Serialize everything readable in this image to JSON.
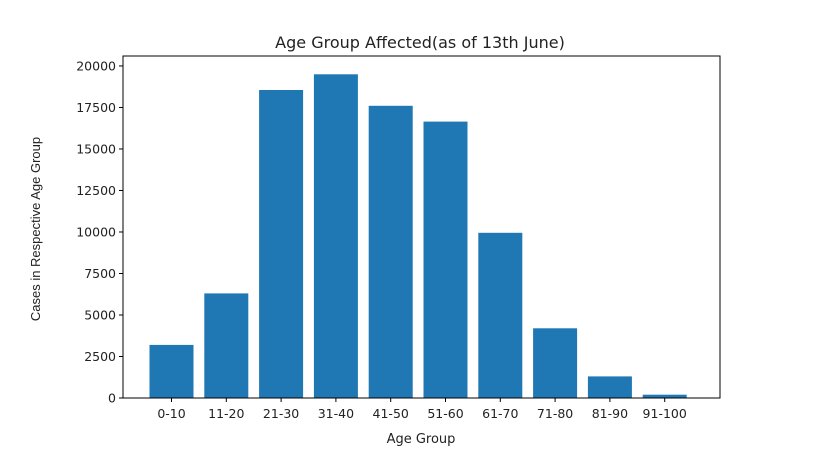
{
  "chart_data": {
    "type": "bar",
    "title": "Age Group Affected(as of 13th June)",
    "xlabel": "Age Group",
    "ylabel": "Cases in Respective Age Group",
    "categories": [
      "0-10",
      "11-20",
      "21-30",
      "31-40",
      "41-50",
      "51-60",
      "61-70",
      "71-80",
      "81-90",
      "91-100"
    ],
    "values": [
      3200,
      6300,
      18550,
      19500,
      17600,
      16650,
      9950,
      4200,
      1300,
      200
    ],
    "ylim": [
      0,
      20600
    ],
    "yticks": [
      0,
      2500,
      5000,
      7500,
      10000,
      12500,
      15000,
      17500,
      20000
    ],
    "bar_color": "#1f77b4",
    "grid": false,
    "legend": "none"
  }
}
